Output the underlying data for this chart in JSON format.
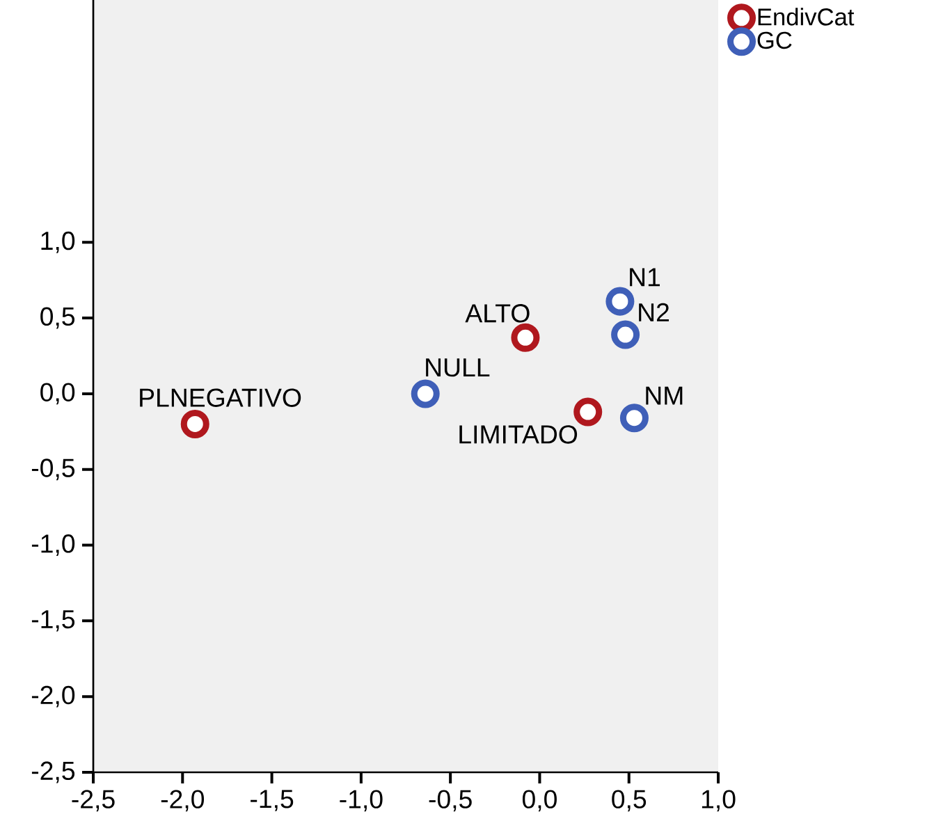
{
  "chart_data": {
    "type": "scatter",
    "xlim": [
      -2.5,
      1.0
    ],
    "ylim": [
      -2.5,
      2.6
    ],
    "xticks": [
      {
        "value": -2.5,
        "label": "-2,5"
      },
      {
        "value": -2.0,
        "label": "-2,0"
      },
      {
        "value": -1.5,
        "label": "-1,5"
      },
      {
        "value": -1.0,
        "label": "-1,0"
      },
      {
        "value": -0.5,
        "label": "-0,5"
      },
      {
        "value": 0.0,
        "label": "0,0"
      },
      {
        "value": 0.5,
        "label": "0,5"
      },
      {
        "value": 1.0,
        "label": "1,0"
      }
    ],
    "yticks": [
      {
        "value": -2.5,
        "label": "-2,5"
      },
      {
        "value": -2.0,
        "label": "-2,0"
      },
      {
        "value": -1.5,
        "label": "-1,5"
      },
      {
        "value": -1.0,
        "label": "-1,0"
      },
      {
        "value": -0.5,
        "label": "-0,5"
      },
      {
        "value": 0.0,
        "label": "0,0"
      },
      {
        "value": 0.5,
        "label": "0,5"
      },
      {
        "value": 1.0,
        "label": "1,0"
      }
    ],
    "series": [
      {
        "name": "EndivCat",
        "color": "#b0181e",
        "x": [
          -1.93,
          -0.08,
          0.27
        ],
        "values": [
          -0.2,
          0.37,
          -0.12
        ]
      },
      {
        "name": "GC",
        "color": "#3f5fb8",
        "x": [
          -0.64,
          0.45,
          0.48,
          0.53
        ],
        "values": [
          0.0,
          0.61,
          0.39,
          -0.16
        ]
      }
    ],
    "annotations": [
      {
        "text": "PLNEGATIVO",
        "x": -1.93,
        "y": -0.2
      },
      {
        "text": "ALTO",
        "x": -0.08,
        "y": 0.37
      },
      {
        "text": "LIMITADO",
        "x": 0.27,
        "y": -0.12
      },
      {
        "text": "NULL",
        "x": -0.64,
        "y": 0.0
      },
      {
        "text": "N1",
        "x": 0.45,
        "y": 0.61
      },
      {
        "text": "N2",
        "x": 0.48,
        "y": 0.39
      },
      {
        "text": "NM",
        "x": 0.53,
        "y": -0.16
      }
    ],
    "grid": false,
    "legend": "top right"
  }
}
